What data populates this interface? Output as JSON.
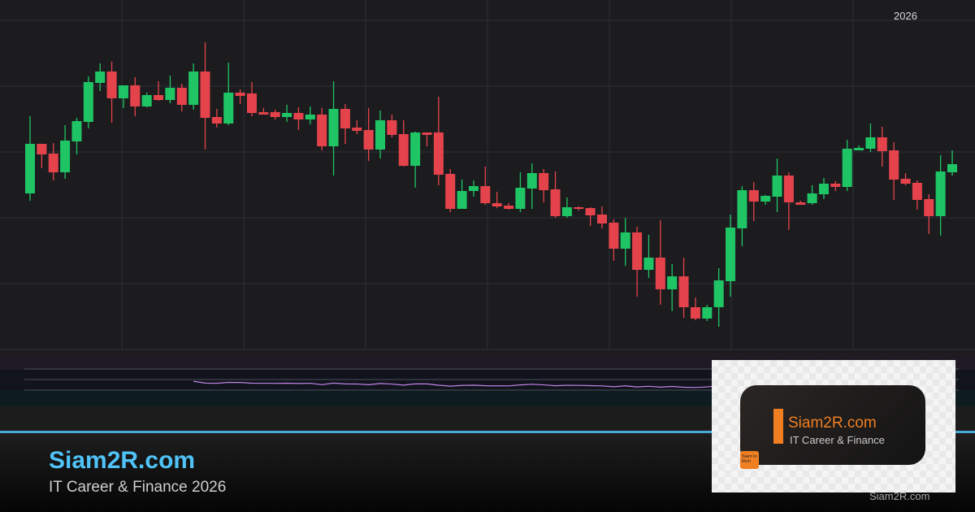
{
  "chart_data": {
    "type": "candlestick",
    "title": "",
    "xlabel": "",
    "ylabel": "",
    "time_label": "2026",
    "grid": true,
    "colors": {
      "up": "#1fc565",
      "down": "#e5434b",
      "indicator": "#c084e8",
      "background": "#1c1c1e",
      "grid": "#2c2f3a"
    },
    "ylim": [
      5,
      50
    ],
    "indicator": {
      "type": "rsi",
      "period": 14,
      "levels": [
        70,
        50,
        30
      ]
    },
    "ohlc": [
      [
        26.2,
        35.7,
        25.3,
        32.3
      ],
      [
        32.3,
        32.3,
        29.3,
        31.0
      ],
      [
        31.1,
        32.4,
        27.8,
        28.8
      ],
      [
        28.8,
        34.6,
        28.0,
        32.7
      ],
      [
        32.6,
        35.5,
        31.0,
        35.1
      ],
      [
        35.0,
        40.6,
        34.2,
        39.9
      ],
      [
        39.8,
        42.2,
        38.8,
        41.2
      ],
      [
        41.2,
        42.4,
        34.9,
        37.9
      ],
      [
        37.9,
        39.5,
        36.7,
        39.5
      ],
      [
        39.5,
        40.5,
        35.7,
        36.9
      ],
      [
        36.9,
        38.6,
        36.8,
        38.3
      ],
      [
        38.3,
        40.0,
        37.6,
        37.7
      ],
      [
        37.7,
        40.7,
        37.3,
        39.2
      ],
      [
        39.2,
        39.7,
        36.3,
        37.1
      ],
      [
        37.1,
        42.2,
        36.5,
        41.2
      ],
      [
        41.2,
        44.8,
        31.6,
        35.5
      ],
      [
        35.6,
        36.6,
        34.3,
        34.8
      ],
      [
        34.8,
        42.3,
        34.6,
        38.6
      ],
      [
        38.6,
        39.0,
        37.2,
        38.2
      ],
      [
        38.5,
        39.9,
        35.7,
        36.1
      ],
      [
        36.2,
        36.7,
        35.9,
        35.9
      ],
      [
        36.2,
        36.5,
        35.3,
        35.6
      ],
      [
        35.6,
        37.1,
        35.0,
        36.1
      ],
      [
        36.1,
        36.8,
        34.0,
        35.3
      ],
      [
        35.3,
        36.9,
        34.7,
        35.9
      ],
      [
        35.9,
        36.7,
        31.5,
        32.0
      ],
      [
        32.0,
        40.0,
        28.4,
        36.6
      ],
      [
        36.6,
        37.2,
        32.3,
        34.2
      ],
      [
        34.3,
        35.2,
        33.5,
        33.9
      ],
      [
        34.0,
        36.7,
        30.2,
        31.6
      ],
      [
        31.6,
        36.4,
        30.5,
        35.2
      ],
      [
        35.2,
        35.9,
        33.1,
        33.4
      ],
      [
        33.5,
        35.2,
        29.5,
        29.6
      ],
      [
        29.6,
        33.8,
        26.9,
        33.7
      ],
      [
        33.7,
        33.7,
        32.0,
        33.4
      ],
      [
        33.7,
        38.1,
        27.2,
        28.5
      ],
      [
        28.6,
        29.2,
        23.9,
        24.3
      ],
      [
        24.3,
        27.9,
        24.3,
        26.5
      ],
      [
        26.5,
        27.8,
        25.8,
        27.1
      ],
      [
        27.1,
        29.5,
        24.8,
        25.0
      ],
      [
        25.0,
        26.4,
        24.4,
        24.6
      ],
      [
        24.7,
        25.0,
        24.2,
        24.3
      ],
      [
        24.3,
        28.8,
        23.9,
        26.9
      ],
      [
        26.8,
        29.9,
        24.3,
        28.7
      ],
      [
        28.7,
        29.2,
        25.1,
        26.6
      ],
      [
        26.7,
        28.9,
        23.2,
        23.4
      ],
      [
        23.4,
        25.7,
        23.2,
        24.5
      ],
      [
        24.5,
        24.6,
        24.1,
        24.3
      ],
      [
        24.4,
        24.5,
        22.2,
        23.5
      ],
      [
        23.6,
        24.6,
        21.9,
        22.5
      ],
      [
        22.6,
        23.0,
        17.9,
        19.4
      ],
      [
        19.4,
        23.2,
        17.3,
        21.4
      ],
      [
        21.4,
        22.1,
        13.5,
        16.8
      ],
      [
        16.8,
        21.1,
        15.8,
        18.3
      ],
      [
        18.3,
        22.9,
        12.5,
        14.4
      ],
      [
        14.4,
        17.5,
        11.7,
        16.0
      ],
      [
        16.0,
        18.3,
        10.9,
        12.2
      ],
      [
        12.2,
        13.4,
        10.6,
        10.8
      ],
      [
        10.8,
        12.5,
        10.5,
        12.2
      ],
      [
        12.2,
        17.0,
        9.8,
        15.5
      ],
      [
        15.4,
        23.6,
        13.5,
        22.0
      ],
      [
        21.9,
        27.1,
        19.7,
        26.6
      ],
      [
        26.6,
        27.6,
        22.8,
        25.2
      ],
      [
        25.2,
        26.0,
        24.8,
        25.9
      ],
      [
        25.8,
        30.5,
        23.9,
        28.4
      ],
      [
        28.4,
        28.8,
        21.7,
        25.1
      ],
      [
        25.1,
        25.3,
        24.8,
        24.8
      ],
      [
        25.0,
        27.2,
        24.8,
        26.2
      ],
      [
        26.1,
        28.1,
        25.5,
        27.4
      ],
      [
        27.4,
        27.7,
        26.5,
        27.0
      ],
      [
        27.0,
        32.8,
        26.5,
        31.7
      ],
      [
        31.5,
        32.1,
        31.5,
        31.8
      ],
      [
        31.7,
        34.8,
        31.3,
        33.1
      ],
      [
        33.1,
        34.4,
        29.5,
        31.4
      ],
      [
        31.5,
        32.5,
        25.4,
        27.9
      ],
      [
        28.0,
        28.7,
        27.2,
        27.4
      ],
      [
        27.5,
        27.8,
        24.2,
        25.4
      ],
      [
        25.5,
        26.1,
        21.2,
        23.4
      ],
      [
        23.4,
        30.9,
        21.0,
        28.9
      ],
      [
        28.8,
        31.5,
        28.4,
        29.8
      ]
    ]
  },
  "footer": {
    "brand": "Siam2R.com",
    "tagline": "IT Career & Finance 2026",
    "brand_color": "#4fc3f7",
    "accent_line_color": "#4aa8d8"
  },
  "logo": {
    "name": "Siam2R.com",
    "subtitle": "IT Career & Finance",
    "badge": "Siam to Rich",
    "accent_color": "#f07f22"
  },
  "watermark": "Siam2R.com"
}
